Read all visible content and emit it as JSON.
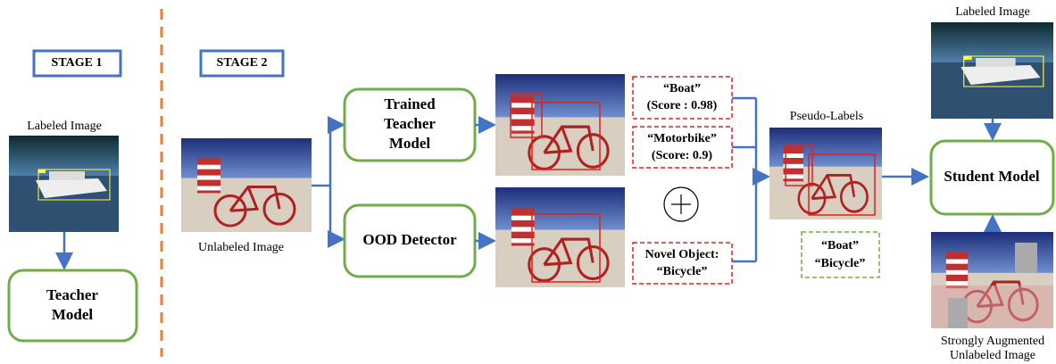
{
  "stage1": {
    "label": "STAGE 1"
  },
  "stage2": {
    "label": "STAGE 2"
  },
  "labeled_image_left": {
    "caption": "Labeled Image"
  },
  "teacher_model": {
    "lines": [
      "Teacher",
      "Model"
    ]
  },
  "unlabeled_image": {
    "caption": "Unlabeled Image"
  },
  "trained_teacher_model": {
    "lines": [
      "Trained",
      "Teacher",
      "Model"
    ]
  },
  "ood_detector": {
    "label": "OOD Detector"
  },
  "predictions": [
    {
      "lines": [
        "“Boat”",
        "(Score : 0.98)"
      ]
    },
    {
      "lines": [
        "“Motorbike”",
        "(Score: 0.9)"
      ]
    },
    {
      "lines": [
        "Novel Object:",
        "“Bicycle”"
      ]
    }
  ],
  "pseudo_labels": {
    "caption": "Pseudo-Labels",
    "lines": [
      "“Boat”",
      "“Bicycle”"
    ]
  },
  "labeled_image_right": {
    "caption": "Labeled Image"
  },
  "student_model": {
    "label": "Student Model"
  },
  "augmented_image": {
    "lines": [
      "Strongly Augmented",
      "Unlabeled Image"
    ]
  }
}
